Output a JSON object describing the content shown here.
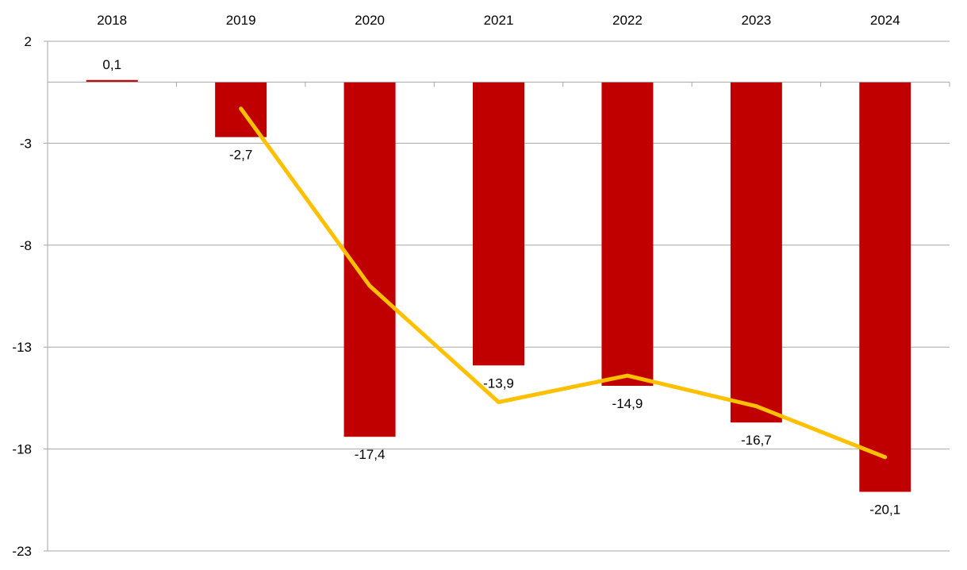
{
  "chart_data": {
    "type": "bar",
    "categories": [
      "2018",
      "2019",
      "2020",
      "2021",
      "2022",
      "2023",
      "2024"
    ],
    "series": [
      {
        "type": "bar",
        "values": [
          0.1,
          -2.7,
          -17.4,
          -13.9,
          -14.9,
          -16.7,
          -20.1
        ],
        "data_labels": [
          "0,1",
          "-2,7",
          "-17,4",
          "-13,9",
          "-14,9",
          "-16,7",
          "-20,1"
        ],
        "color": "#c00000"
      },
      {
        "type": "line",
        "values": [
          null,
          -1.3,
          -10.0,
          -15.7,
          -14.4,
          -15.9,
          -18.4
        ],
        "color": "#ffc000"
      }
    ],
    "ylim": [
      -23,
      2
    ],
    "yticks": [
      2,
      -3,
      -8,
      -13,
      -18,
      -23
    ],
    "ytick_labels": [
      "2",
      "-3",
      "-8",
      "-13",
      "-18",
      "-23"
    ],
    "category_axis_position": "top",
    "grid": true,
    "title": "",
    "xlabel": "",
    "ylabel": ""
  },
  "colors": {
    "bar": "#c00000",
    "line": "#ffc000",
    "grid": "#a6a6a6"
  }
}
